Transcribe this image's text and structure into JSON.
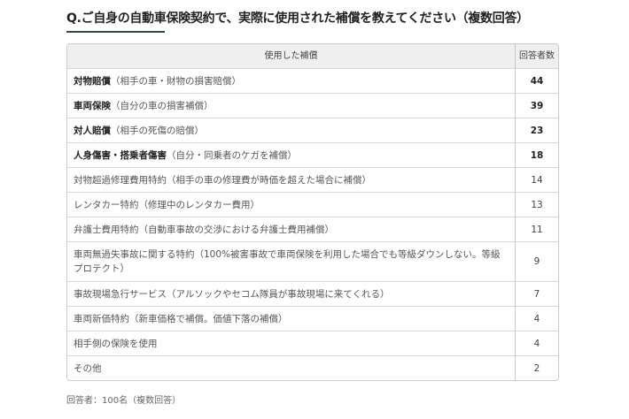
{
  "title": "Q.ご自身の自動車保険契約で、実際に使用された補償を教えてください（複数回答）",
  "table": {
    "headers": [
      "使用した補償",
      "回答者数"
    ],
    "rows": [
      {
        "bold": "対物賠償",
        "text": "（相手の車・財物の損害賠償）",
        "count": "44"
      },
      {
        "bold": "車両保険",
        "text": "（自分の車の損害補償）",
        "count": "39"
      },
      {
        "bold": "対人賠償",
        "text": "（相手の死傷の賠償）",
        "count": "23"
      },
      {
        "bold": "人身傷害・搭乗者傷害",
        "text": "（自分・同乗者のケガを補償）",
        "count": "18"
      },
      {
        "bold": "",
        "text": "対物超過修理費用特約（相手の車の修理費が時価を超えた場合に補償）",
        "count": "14"
      },
      {
        "bold": "",
        "text": "レンタカー特約（修理中のレンタカー費用）",
        "count": "13"
      },
      {
        "bold": "",
        "text": "弁護士費用特約（自動車事故の交渉における弁護士費用補償）",
        "count": "11"
      },
      {
        "bold": "",
        "text": "車両無過失事故に関する特約（100%被害事故で車両保険を利用した場合でも等級ダウンしない。等級プロテクト）",
        "count": "9"
      },
      {
        "bold": "",
        "text": "事故現場急行サービス（アルソックやセコム隊員が事故現場に来てくれる）",
        "count": "7"
      },
      {
        "bold": "",
        "text": "車両新価特約（新車価格で補償。価値下落の補償）",
        "count": "4"
      },
      {
        "bold": "",
        "text": "相手側の保険を使用",
        "count": "4"
      },
      {
        "bold": "",
        "text": "その他",
        "count": "2"
      }
    ]
  },
  "footer": "回答者：100名（複数回答）"
}
